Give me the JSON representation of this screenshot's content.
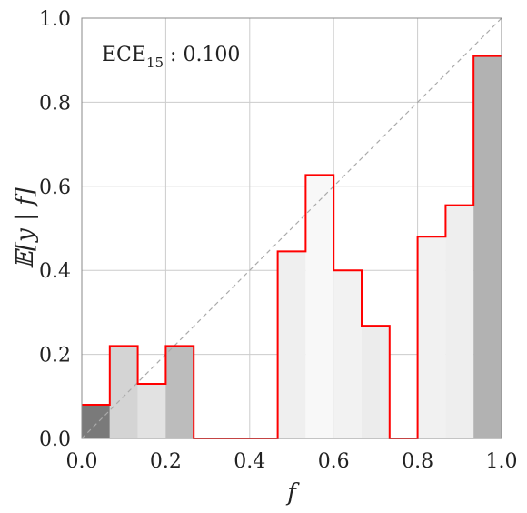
{
  "chart_data": {
    "type": "bar",
    "annotation": {
      "prefix": "ECE",
      "subscript": "15",
      "suffix": " : 0.100"
    },
    "xlabel": "f",
    "ylabel": "𝔼[y | f]",
    "xlim": [
      0.0,
      1.0
    ],
    "ylim": [
      0.0,
      1.0
    ],
    "xticks": [
      "0.0",
      "0.2",
      "0.4",
      "0.6",
      "0.8",
      "1.0"
    ],
    "yticks": [
      "0.0",
      "0.2",
      "0.4",
      "0.6",
      "0.8",
      "1.0"
    ],
    "grid": true,
    "diagonal": true,
    "colors": {
      "step_line": "#ff0000",
      "diagonal": "#aaaaaa",
      "grid": "#cccccc",
      "frame": "#888888"
    },
    "bins": {
      "edges": [
        0.0,
        0.0667,
        0.1333,
        0.2,
        0.2667,
        0.3333,
        0.4,
        0.4667,
        0.5333,
        0.6,
        0.6667,
        0.7333,
        0.8,
        0.8667,
        0.9333,
        1.0
      ],
      "values": [
        0.08,
        0.22,
        0.13,
        0.22,
        0.0,
        0.0,
        0.0,
        0.445,
        0.627,
        0.4,
        0.268,
        0.0,
        0.48,
        0.555,
        0.91
      ],
      "fill_colors": [
        "#7a7a7a",
        "#d4d4d4",
        "#e2e2e2",
        "#bcbcbc",
        "#ffffff",
        "#ffffff",
        "#ffffff",
        "#efefef",
        "#f8f8f8",
        "#f2f2f2",
        "#ececec",
        "#ffffff",
        "#f1f1f1",
        "#eeeeee",
        "#b2b2b2"
      ]
    }
  }
}
